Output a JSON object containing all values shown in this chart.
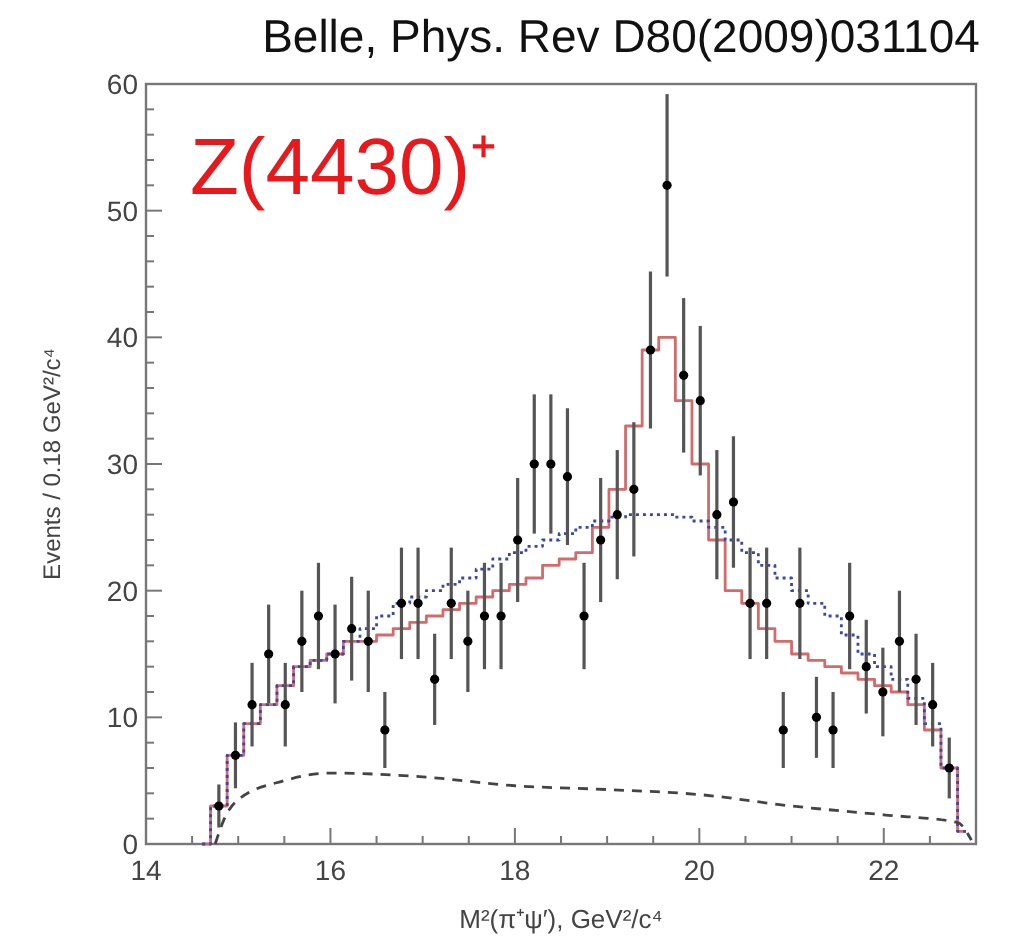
{
  "chart_data": {
    "type": "scatter",
    "title": "Belle, Phys. Rev D80(2009)031104",
    "xlabel": "M²(π⁺ψ′), GeV²/c⁴",
    "ylabel": "Events / 0.18 GeV²/c⁴",
    "annotations": [
      "Z(4430)⁺"
    ],
    "xlim": [
      14,
      23
    ],
    "xticks": [
      14,
      16,
      18,
      20,
      22
    ],
    "ylim": [
      0,
      60
    ],
    "yticks": [
      0,
      10,
      20,
      30,
      40,
      50,
      60
    ],
    "grid": false,
    "series": [
      {
        "type": "step",
        "color": "#d46a6a",
        "line_style": "solid",
        "x": [
          14.61,
          14.79,
          14.97,
          15.15,
          15.33,
          15.51,
          15.69,
          15.87,
          16.05,
          16.23,
          16.41,
          16.59,
          16.77,
          16.95,
          17.13,
          17.31,
          17.49,
          17.67,
          17.85,
          18.03,
          18.21,
          18.39,
          18.57,
          18.75,
          18.93,
          19.11,
          19.29,
          19.47,
          19.65,
          19.83,
          20.01,
          20.19,
          20.37,
          20.55,
          20.73,
          20.91,
          21.09,
          21.27,
          21.45,
          21.63,
          21.81,
          21.99,
          22.17,
          22.35,
          22.53,
          22.71,
          22.89
        ],
        "values": [
          0,
          3,
          7,
          9.5,
          11,
          12.5,
          14,
          14.5,
          15,
          16,
          16,
          16.5,
          17,
          17.5,
          18,
          18.5,
          19,
          19.5,
          20,
          20.5,
          21,
          22,
          22.5,
          23,
          25,
          28,
          33,
          39,
          40,
          35,
          30,
          24,
          20,
          19,
          17,
          16,
          15,
          14.5,
          14,
          13.5,
          13,
          12.5,
          12,
          11,
          9,
          6,
          1
        ]
      },
      {
        "type": "step",
        "color": "#3a46b0",
        "line_style": "dotted",
        "x": [
          14.61,
          14.79,
          14.97,
          15.15,
          15.33,
          15.51,
          15.69,
          15.87,
          16.05,
          16.23,
          16.41,
          16.59,
          16.77,
          16.95,
          17.13,
          17.31,
          17.49,
          17.67,
          17.85,
          18.03,
          18.21,
          18.39,
          18.57,
          18.75,
          18.93,
          19.11,
          19.29,
          19.47,
          19.65,
          19.83,
          20.01,
          20.19,
          20.37,
          20.55,
          20.73,
          20.91,
          21.09,
          21.27,
          21.45,
          21.63,
          21.81,
          21.99,
          22.17,
          22.35,
          22.53,
          22.71,
          22.89
        ],
        "values": [
          0,
          3,
          7,
          9.5,
          11,
          12.5,
          14,
          14.5,
          15,
          16,
          17,
          18,
          19,
          19.5,
          20,
          20.5,
          21,
          21.7,
          22.5,
          23,
          23.5,
          24,
          24.5,
          25,
          25.5,
          25.8,
          26,
          26,
          26,
          25.8,
          25.5,
          25,
          24,
          23,
          22,
          21,
          20,
          19,
          18,
          16.5,
          15,
          14,
          13,
          11.5,
          9.5,
          6,
          1
        ]
      },
      {
        "type": "line",
        "color": "#444444",
        "line_style": "dashed",
        "x": [
          14.75,
          14.85,
          15,
          15.5,
          16,
          17,
          18,
          19,
          20,
          21,
          22,
          22.8,
          22.95
        ],
        "values": [
          0,
          2,
          3.5,
          5,
          5.6,
          5.3,
          4.6,
          4.3,
          3.9,
          3,
          2.3,
          1.7,
          0.3
        ]
      },
      {
        "color": "#000000",
        "marker": "circle",
        "x": [
          14.79,
          14.97,
          15.15,
          15.33,
          15.51,
          15.69,
          15.87,
          16.05,
          16.23,
          16.41,
          16.59,
          16.77,
          16.95,
          17.13,
          17.31,
          17.49,
          17.67,
          17.85,
          18.03,
          18.21,
          18.39,
          18.57,
          18.75,
          18.93,
          19.11,
          19.29,
          19.47,
          19.65,
          19.83,
          20.01,
          20.19,
          20.37,
          20.55,
          20.73,
          20.91,
          21.09,
          21.27,
          21.45,
          21.63,
          21.81,
          21.99,
          22.17,
          22.35,
          22.53,
          22.71
        ],
        "values": [
          3,
          7,
          11,
          15,
          11,
          16,
          18,
          15,
          17,
          16,
          9,
          19,
          19,
          13,
          19,
          16,
          18,
          18,
          24,
          30,
          30,
          29,
          18,
          24,
          26,
          28,
          39,
          52,
          37,
          35,
          26,
          27,
          19,
          19,
          9,
          19,
          10,
          9,
          18,
          14,
          12,
          16,
          13,
          11,
          6
        ],
        "errors": [
          1.7,
          2.6,
          3.3,
          3.9,
          3.3,
          4,
          4.2,
          3.9,
          4.1,
          4,
          3,
          4.4,
          4.4,
          3.6,
          4.4,
          4,
          4.2,
          4.2,
          4.9,
          5.5,
          5.5,
          5.4,
          4.2,
          4.9,
          5.1,
          5.3,
          6.2,
          7.2,
          6.1,
          5.9,
          5.1,
          5.2,
          4.4,
          4.4,
          3,
          4.4,
          3.2,
          3,
          4.2,
          3.7,
          3.5,
          4,
          3.6,
          3.3,
          2.4
        ]
      }
    ]
  }
}
